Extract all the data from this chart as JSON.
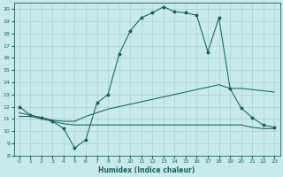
{
  "xlabel": "Humidex (Indice chaleur)",
  "xlim": [
    -0.5,
    23.5
  ],
  "ylim": [
    8,
    20.5
  ],
  "yticks": [
    8,
    9,
    10,
    11,
    12,
    13,
    14,
    15,
    16,
    17,
    18,
    19,
    20
  ],
  "xticks": [
    0,
    1,
    2,
    3,
    4,
    5,
    6,
    7,
    8,
    9,
    10,
    11,
    12,
    13,
    14,
    15,
    16,
    17,
    18,
    19,
    20,
    21,
    22,
    23
  ],
  "bg_color": "#c8eaea",
  "grid_color": "#aad0d0",
  "line_color": "#1a6060",
  "line1_x": [
    0,
    1,
    2,
    3,
    4,
    5,
    6,
    7,
    8,
    9,
    10,
    11,
    12,
    13,
    14,
    15,
    16,
    17,
    18,
    19,
    20,
    21,
    22,
    23
  ],
  "line1_y": [
    12.0,
    11.3,
    11.1,
    10.8,
    10.2,
    8.6,
    9.3,
    12.3,
    13.0,
    16.3,
    18.2,
    19.3,
    19.7,
    20.2,
    19.8,
    19.7,
    19.5,
    16.5,
    19.3,
    13.5,
    11.9,
    11.1,
    10.5,
    10.3
  ],
  "line2_x": [
    0,
    1,
    2,
    3,
    4,
    5,
    6,
    7,
    8,
    9,
    10,
    11,
    12,
    13,
    14,
    15,
    16,
    17,
    18,
    19,
    20,
    21,
    22,
    23
  ],
  "line2_y": [
    11.2,
    11.2,
    11.0,
    10.8,
    10.6,
    10.5,
    10.5,
    10.5,
    10.5,
    10.5,
    10.5,
    10.5,
    10.5,
    10.5,
    10.5,
    10.5,
    10.5,
    10.5,
    10.5,
    10.5,
    10.5,
    10.3,
    10.2,
    10.2
  ],
  "line3_x": [
    0,
    1,
    2,
    3,
    4,
    5,
    6,
    7,
    8,
    9,
    10,
    11,
    12,
    13,
    14,
    15,
    16,
    17,
    18,
    19,
    20,
    21,
    22,
    23
  ],
  "line3_y": [
    11.5,
    11.3,
    11.1,
    10.9,
    10.8,
    10.8,
    11.2,
    11.5,
    11.8,
    12.0,
    12.2,
    12.4,
    12.6,
    12.8,
    13.0,
    13.2,
    13.4,
    13.6,
    13.8,
    13.5,
    13.5,
    13.4,
    13.3,
    13.2
  ]
}
